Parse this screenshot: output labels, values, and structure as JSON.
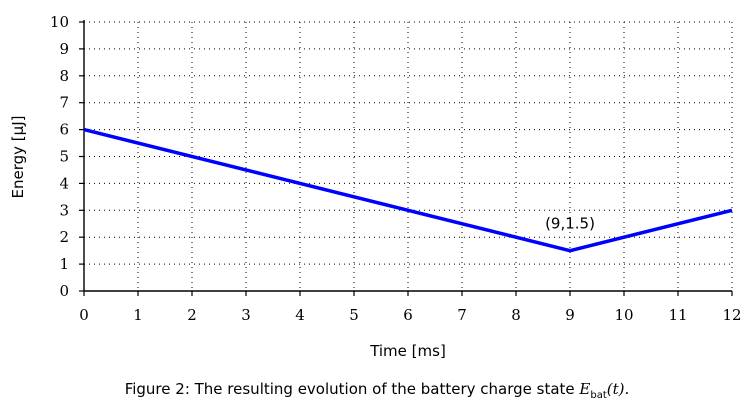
{
  "chart_data": {
    "type": "line",
    "xlabel": "Time [ms]",
    "ylabel": "Energy [µJ]",
    "xlim": [
      0,
      12
    ],
    "ylim": [
      0,
      10
    ],
    "xticks": [
      "0",
      "1",
      "2",
      "3",
      "4",
      "5",
      "6",
      "7",
      "8",
      "9",
      "10",
      "11",
      "12"
    ],
    "yticks": [
      "0",
      "1",
      "2",
      "3",
      "4",
      "5",
      "6",
      "7",
      "8",
      "9",
      "10"
    ],
    "grid": true,
    "series": [
      {
        "color": "#0000ff",
        "x": [
          0,
          9,
          12
        ],
        "y": [
          6,
          1.5,
          3
        ]
      }
    ],
    "annotations": [
      {
        "text": "(9,1.5)",
        "x": 9,
        "y": 1.5
      }
    ]
  },
  "caption": {
    "prefix": "Figure 2:  The resulting evolution of the battery charge state ",
    "symbol": "E",
    "subscript": "bat",
    "suffix": "(t)."
  }
}
